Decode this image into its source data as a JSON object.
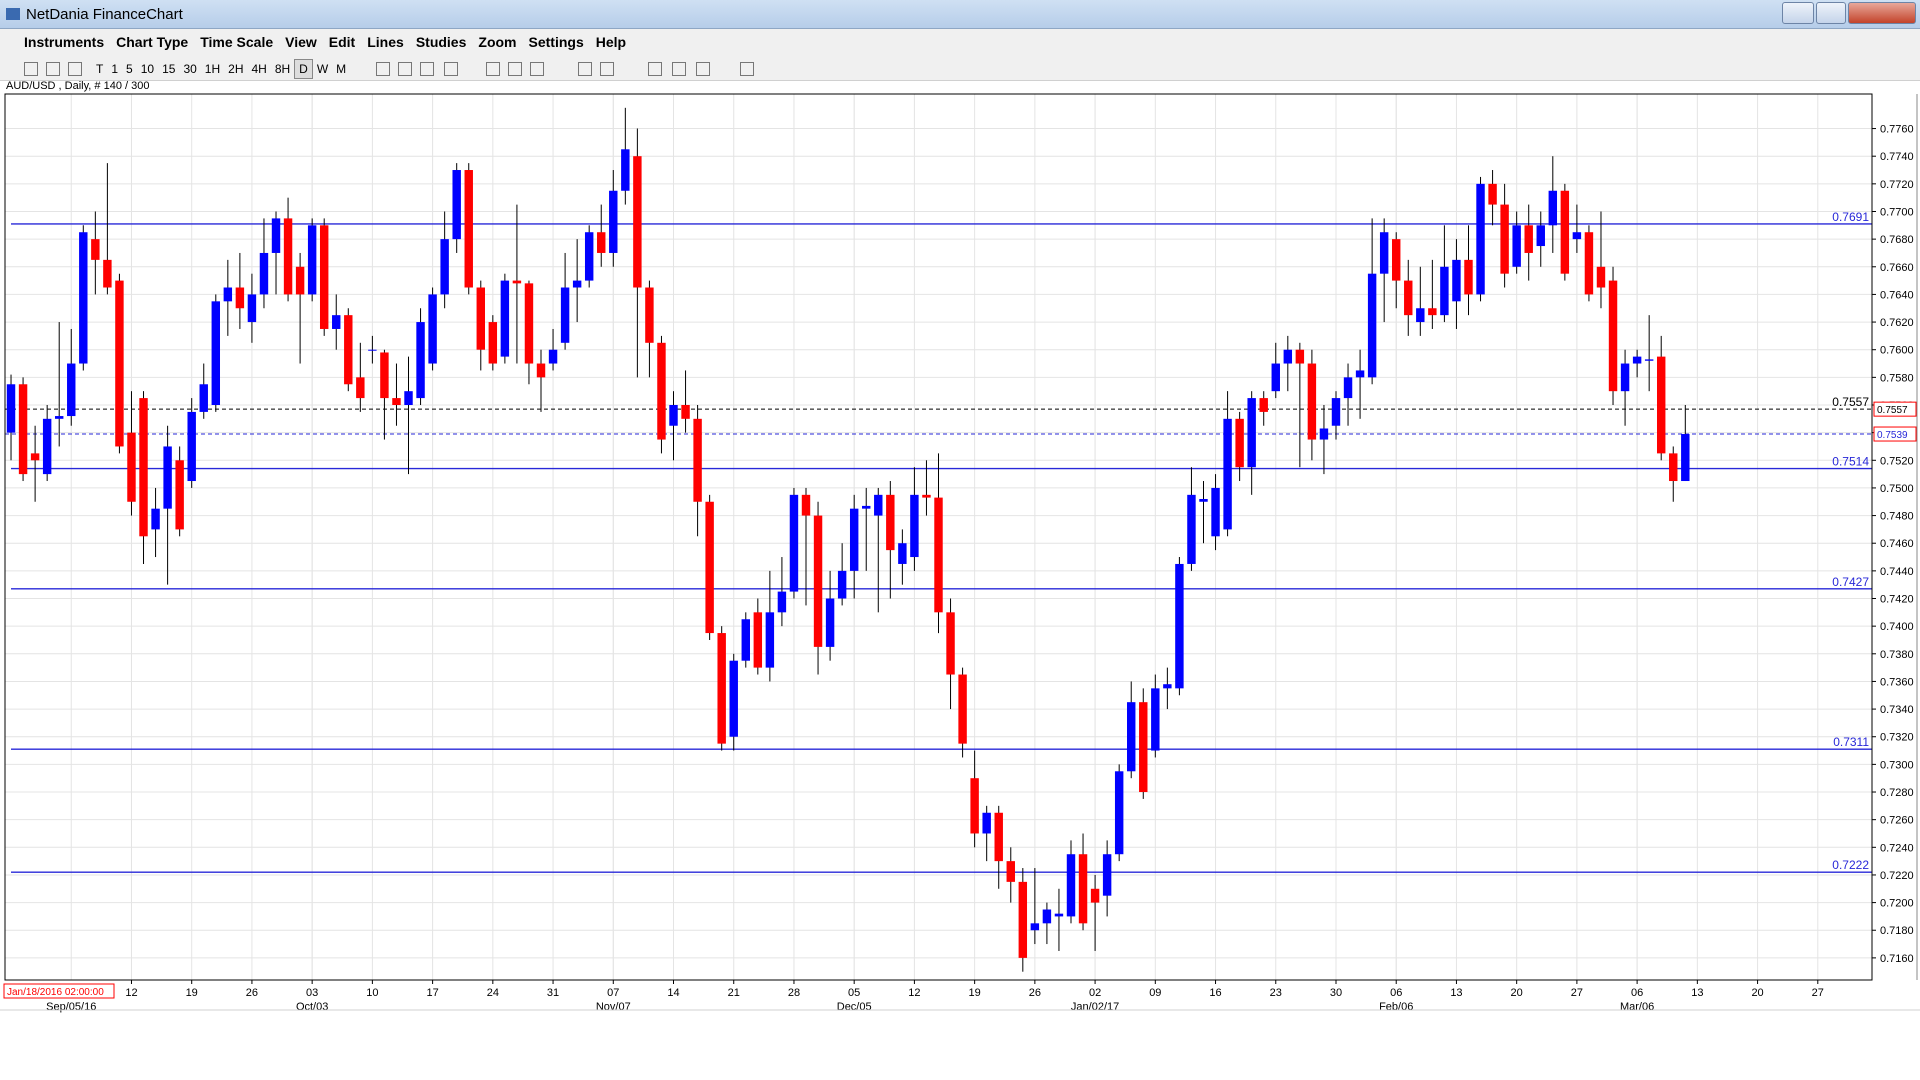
{
  "window_title": "NetDania FinanceChart",
  "menu": [
    "Instruments",
    "Chart Type",
    "Time Scale",
    "View",
    "Edit",
    "Lines",
    "Studies",
    "Zoom",
    "Settings",
    "Help"
  ],
  "toolbar": [
    "T",
    "1",
    "5",
    "10",
    "15",
    "30",
    "1H",
    "2H",
    "4H",
    "8H",
    "D",
    "W",
    "M"
  ],
  "chart_data": {
    "type": "candlestick",
    "subtitle": "AUD/USD , Daily, # 140 / 300",
    "cursor_label": "Jan/18/2016 02:00:00",
    "up_color": "#0000ff",
    "down_color": "#ff0000",
    "level_color": "#2828d8",
    "grid": true,
    "ylim": [
      0.7144,
      0.7785
    ],
    "yticks": [
      {
        "value": 0.716,
        "label": "0.7160"
      },
      {
        "value": 0.718,
        "label": "0.7180"
      },
      {
        "value": 0.72,
        "label": "0.7200"
      },
      {
        "value": 0.722,
        "label": "0.7220"
      },
      {
        "value": 0.724,
        "label": "0.7240"
      },
      {
        "value": 0.726,
        "label": "0.7260"
      },
      {
        "value": 0.728,
        "label": "0.7280"
      },
      {
        "value": 0.73,
        "label": "0.7300"
      },
      {
        "value": 0.732,
        "label": "0.7320"
      },
      {
        "value": 0.734,
        "label": "0.7340"
      },
      {
        "value": 0.736,
        "label": "0.7360"
      },
      {
        "value": 0.738,
        "label": "0.7380"
      },
      {
        "value": 0.74,
        "label": "0.7400"
      },
      {
        "value": 0.742,
        "label": "0.7420"
      },
      {
        "value": 0.744,
        "label": "0.7440"
      },
      {
        "value": 0.746,
        "label": "0.7460"
      },
      {
        "value": 0.748,
        "label": "0.7480"
      },
      {
        "value": 0.75,
        "label": "0.7500"
      },
      {
        "value": 0.752,
        "label": "0.7520"
      },
      {
        "value": 0.754,
        "label": "0.7540"
      },
      {
        "value": 0.756,
        "label": "0.7560"
      },
      {
        "value": 0.758,
        "label": "0.7580"
      },
      {
        "value": 0.76,
        "label": "0.7600"
      },
      {
        "value": 0.762,
        "label": "0.7620"
      },
      {
        "value": 0.764,
        "label": "0.7640"
      },
      {
        "value": 0.766,
        "label": "0.7660"
      },
      {
        "value": 0.768,
        "label": "0.7680"
      },
      {
        "value": 0.77,
        "label": "0.7700"
      },
      {
        "value": 0.772,
        "label": "0.7720"
      },
      {
        "value": 0.774,
        "label": "0.7740"
      },
      {
        "value": 0.776,
        "label": "0.7760"
      }
    ],
    "xlim": [
      -0.5,
      154.5
    ],
    "xticks": [
      {
        "value": 10,
        "label": "12"
      },
      {
        "value": 15,
        "label": "19"
      },
      {
        "value": 20,
        "label": "26"
      },
      {
        "value": 25,
        "label": "03"
      },
      {
        "value": 30,
        "label": "10"
      },
      {
        "value": 35,
        "label": "17"
      },
      {
        "value": 40,
        "label": "24"
      },
      {
        "value": 45,
        "label": "31"
      },
      {
        "value": 50,
        "label": "07"
      },
      {
        "value": 55,
        "label": "14"
      },
      {
        "value": 60,
        "label": "21"
      },
      {
        "value": 65,
        "label": "28"
      },
      {
        "value": 70,
        "label": "05"
      },
      {
        "value": 75,
        "label": "12"
      },
      {
        "value": 80,
        "label": "19"
      },
      {
        "value": 85,
        "label": "26"
      },
      {
        "value": 90,
        "label": "02"
      },
      {
        "value": 95,
        "label": "09"
      },
      {
        "value": 100,
        "label": "16"
      },
      {
        "value": 105,
        "label": "23"
      },
      {
        "value": 110,
        "label": "30"
      },
      {
        "value": 115,
        "label": "06"
      },
      {
        "value": 120,
        "label": "13"
      },
      {
        "value": 125,
        "label": "20"
      },
      {
        "value": 130,
        "label": "27"
      },
      {
        "value": 135,
        "label": "06"
      },
      {
        "value": 140,
        "label": "13"
      },
      {
        "value": 145,
        "label": "20"
      },
      {
        "value": 150,
        "label": "27"
      }
    ],
    "xticks_major": [
      {
        "value": 5,
        "label": "Sep/05/16"
      },
      {
        "value": 25,
        "label": "Oct/03"
      },
      {
        "value": 50,
        "label": "Nov/07"
      },
      {
        "value": 70,
        "label": "Dec/05"
      },
      {
        "value": 90,
        "label": "Jan/02/17"
      },
      {
        "value": 115,
        "label": "Feb/06"
      },
      {
        "value": 135,
        "label": "Mar/06"
      }
    ],
    "levels": [
      0.7691,
      0.7514,
      0.7427,
      0.7311,
      0.7222
    ],
    "reference_line": 0.7557,
    "last_price": 0.7539,
    "ohlc": [
      [
        0.754,
        0.7582,
        0.752,
        0.7575
      ],
      [
        0.7575,
        0.758,
        0.7505,
        0.751
      ],
      [
        0.7525,
        0.7545,
        0.749,
        0.752
      ],
      [
        0.751,
        0.756,
        0.7505,
        0.755
      ],
      [
        0.755,
        0.762,
        0.753,
        0.7552
      ],
      [
        0.7552,
        0.7615,
        0.7545,
        0.759
      ],
      [
        0.759,
        0.769,
        0.7585,
        0.7685
      ],
      [
        0.768,
        0.77,
        0.764,
        0.7665
      ],
      [
        0.7665,
        0.7735,
        0.764,
        0.7645
      ],
      [
        0.765,
        0.7655,
        0.7525,
        0.753
      ],
      [
        0.754,
        0.757,
        0.748,
        0.749
      ],
      [
        0.7565,
        0.757,
        0.7445,
        0.7465
      ],
      [
        0.747,
        0.75,
        0.745,
        0.7485
      ],
      [
        0.7485,
        0.7545,
        0.743,
        0.753
      ],
      [
        0.752,
        0.753,
        0.7465,
        0.747
      ],
      [
        0.7505,
        0.7565,
        0.75,
        0.7555
      ],
      [
        0.7555,
        0.759,
        0.755,
        0.7575
      ],
      [
        0.756,
        0.764,
        0.7555,
        0.7635
      ],
      [
        0.7635,
        0.7665,
        0.761,
        0.7645
      ],
      [
        0.7645,
        0.767,
        0.7615,
        0.763
      ],
      [
        0.762,
        0.7655,
        0.7605,
        0.764
      ],
      [
        0.764,
        0.7695,
        0.763,
        0.767
      ],
      [
        0.767,
        0.77,
        0.764,
        0.7695
      ],
      [
        0.7695,
        0.771,
        0.7635,
        0.764
      ],
      [
        0.766,
        0.767,
        0.759,
        0.764
      ],
      [
        0.764,
        0.7695,
        0.7635,
        0.769
      ],
      [
        0.769,
        0.7695,
        0.761,
        0.7615
      ],
      [
        0.7615,
        0.764,
        0.76,
        0.7625
      ],
      [
        0.7625,
        0.763,
        0.757,
        0.7575
      ],
      [
        0.758,
        0.7605,
        0.7555,
        0.7565
      ],
      [
        0.76,
        0.761,
        0.759,
        0.76
      ],
      [
        0.7598,
        0.76,
        0.7535,
        0.7565
      ],
      [
        0.7565,
        0.759,
        0.7545,
        0.756
      ],
      [
        0.756,
        0.7595,
        0.751,
        0.757
      ],
      [
        0.7565,
        0.763,
        0.756,
        0.762
      ],
      [
        0.759,
        0.7645,
        0.7585,
        0.764
      ],
      [
        0.764,
        0.77,
        0.763,
        0.768
      ],
      [
        0.768,
        0.7735,
        0.767,
        0.773
      ],
      [
        0.773,
        0.7735,
        0.764,
        0.7645
      ],
      [
        0.7645,
        0.765,
        0.7585,
        0.76
      ],
      [
        0.762,
        0.7625,
        0.7585,
        0.759
      ],
      [
        0.7595,
        0.7655,
        0.759,
        0.765
      ],
      [
        0.765,
        0.7705,
        0.759,
        0.7648
      ],
      [
        0.7648,
        0.765,
        0.7575,
        0.759
      ],
      [
        0.759,
        0.76,
        0.7555,
        0.758
      ],
      [
        0.759,
        0.7615,
        0.7585,
        0.76
      ],
      [
        0.7605,
        0.767,
        0.76,
        0.7645
      ],
      [
        0.7645,
        0.768,
        0.762,
        0.765
      ],
      [
        0.765,
        0.769,
        0.7645,
        0.7685
      ],
      [
        0.7685,
        0.7705,
        0.766,
        0.767
      ],
      [
        0.767,
        0.773,
        0.766,
        0.7715
      ],
      [
        0.7715,
        0.7775,
        0.7705,
        0.7745
      ],
      [
        0.774,
        0.776,
        0.758,
        0.7645
      ],
      [
        0.7645,
        0.765,
        0.758,
        0.7605
      ],
      [
        0.7605,
        0.761,
        0.7525,
        0.7535
      ],
      [
        0.7545,
        0.757,
        0.752,
        0.756
      ],
      [
        0.756,
        0.7585,
        0.754,
        0.755
      ],
      [
        0.755,
        0.756,
        0.7465,
        0.749
      ],
      [
        0.749,
        0.7495,
        0.739,
        0.7395
      ],
      [
        0.7395,
        0.74,
        0.731,
        0.7315
      ],
      [
        0.732,
        0.738,
        0.731,
        0.7375
      ],
      [
        0.7375,
        0.741,
        0.737,
        0.7405
      ],
      [
        0.741,
        0.742,
        0.7365,
        0.737
      ],
      [
        0.737,
        0.744,
        0.736,
        0.741
      ],
      [
        0.741,
        0.745,
        0.74,
        0.7425
      ],
      [
        0.7425,
        0.75,
        0.742,
        0.7495
      ],
      [
        0.7495,
        0.75,
        0.7415,
        0.748
      ],
      [
        0.748,
        0.749,
        0.7365,
        0.7385
      ],
      [
        0.7385,
        0.744,
        0.7375,
        0.742
      ],
      [
        0.742,
        0.746,
        0.7415,
        0.744
      ],
      [
        0.744,
        0.7495,
        0.742,
        0.7485
      ],
      [
        0.7485,
        0.75,
        0.744,
        0.7487
      ],
      [
        0.748,
        0.75,
        0.741,
        0.7495
      ],
      [
        0.7495,
        0.7505,
        0.742,
        0.7455
      ],
      [
        0.7445,
        0.747,
        0.743,
        0.746
      ],
      [
        0.745,
        0.7515,
        0.744,
        0.7495
      ],
      [
        0.7495,
        0.752,
        0.748,
        0.7493
      ],
      [
        0.7493,
        0.7525,
        0.7395,
        0.741
      ],
      [
        0.741,
        0.742,
        0.734,
        0.7365
      ],
      [
        0.7365,
        0.737,
        0.7305,
        0.7315
      ],
      [
        0.729,
        0.731,
        0.724,
        0.725
      ],
      [
        0.725,
        0.727,
        0.723,
        0.7265
      ],
      [
        0.7265,
        0.727,
        0.721,
        0.723
      ],
      [
        0.723,
        0.724,
        0.72,
        0.7215
      ],
      [
        0.7215,
        0.7225,
        0.715,
        0.716
      ],
      [
        0.718,
        0.7225,
        0.717,
        0.7185
      ],
      [
        0.7185,
        0.72,
        0.717,
        0.7195
      ],
      [
        0.719,
        0.721,
        0.7165,
        0.7192
      ],
      [
        0.719,
        0.7245,
        0.7185,
        0.7235
      ],
      [
        0.7235,
        0.725,
        0.718,
        0.7185
      ],
      [
        0.721,
        0.722,
        0.7165,
        0.72
      ],
      [
        0.7205,
        0.7245,
        0.719,
        0.7235
      ],
      [
        0.7235,
        0.73,
        0.723,
        0.7295
      ],
      [
        0.7295,
        0.736,
        0.729,
        0.7345
      ],
      [
        0.7345,
        0.7355,
        0.7275,
        0.728
      ],
      [
        0.731,
        0.7365,
        0.7305,
        0.7355
      ],
      [
        0.7355,
        0.737,
        0.734,
        0.7358
      ],
      [
        0.7355,
        0.745,
        0.735,
        0.7445
      ],
      [
        0.7445,
        0.7515,
        0.744,
        0.7495
      ],
      [
        0.749,
        0.7505,
        0.746,
        0.7492
      ],
      [
        0.7465,
        0.751,
        0.7455,
        0.75
      ],
      [
        0.747,
        0.757,
        0.7465,
        0.755
      ],
      [
        0.755,
        0.7555,
        0.7505,
        0.7515
      ],
      [
        0.7515,
        0.757,
        0.7495,
        0.7565
      ],
      [
        0.7565,
        0.757,
        0.7545,
        0.7555
      ],
      [
        0.757,
        0.7605,
        0.7565,
        0.759
      ],
      [
        0.759,
        0.761,
        0.757,
        0.76
      ],
      [
        0.76,
        0.7605,
        0.7515,
        0.759
      ],
      [
        0.759,
        0.76,
        0.752,
        0.7535
      ],
      [
        0.7535,
        0.756,
        0.751,
        0.7543
      ],
      [
        0.7545,
        0.757,
        0.7535,
        0.7565
      ],
      [
        0.7565,
        0.759,
        0.7545,
        0.758
      ],
      [
        0.758,
        0.76,
        0.755,
        0.7585
      ],
      [
        0.758,
        0.7695,
        0.7575,
        0.7655
      ],
      [
        0.7655,
        0.7695,
        0.762,
        0.7685
      ],
      [
        0.768,
        0.7685,
        0.763,
        0.765
      ],
      [
        0.765,
        0.7665,
        0.761,
        0.7625
      ],
      [
        0.762,
        0.766,
        0.761,
        0.763
      ],
      [
        0.763,
        0.7665,
        0.7615,
        0.7625
      ],
      [
        0.7625,
        0.769,
        0.762,
        0.766
      ],
      [
        0.7635,
        0.768,
        0.7615,
        0.7665
      ],
      [
        0.7665,
        0.769,
        0.7625,
        0.764
      ],
      [
        0.764,
        0.7725,
        0.7635,
        0.772
      ],
      [
        0.772,
        0.773,
        0.769,
        0.7705
      ],
      [
        0.7705,
        0.772,
        0.7645,
        0.7655
      ],
      [
        0.766,
        0.77,
        0.7655,
        0.769
      ],
      [
        0.769,
        0.7705,
        0.765,
        0.767
      ],
      [
        0.7675,
        0.77,
        0.766,
        0.769
      ],
      [
        0.769,
        0.774,
        0.767,
        0.7715
      ],
      [
        0.7715,
        0.772,
        0.765,
        0.7655
      ],
      [
        0.768,
        0.7705,
        0.767,
        0.7685
      ],
      [
        0.7685,
        0.769,
        0.7635,
        0.764
      ],
      [
        0.766,
        0.77,
        0.763,
        0.7645
      ],
      [
        0.765,
        0.766,
        0.756,
        0.757
      ],
      [
        0.757,
        0.76,
        0.7545,
        0.759
      ],
      [
        0.759,
        0.76,
        0.758,
        0.7595
      ],
      [
        0.7592,
        0.7625,
        0.757,
        0.7593
      ],
      [
        0.7595,
        0.761,
        0.752,
        0.7525
      ],
      [
        0.7525,
        0.753,
        0.749,
        0.7505
      ],
      [
        0.7505,
        0.756,
        0.7505,
        0.7539
      ]
    ]
  }
}
